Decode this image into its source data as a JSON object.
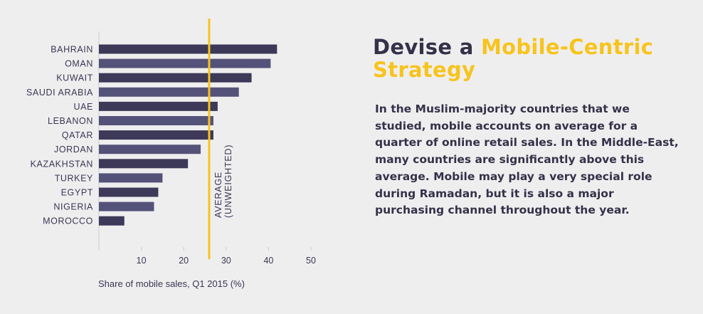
{
  "headline": {
    "part1": "Devise a ",
    "part2": "Mobile-Centric Strategy"
  },
  "body_text": "In the Muslim-majority countries that we studied, mobile accounts on average for a quarter of online retail sales. In the Middle-East, many countries are significantly above this average. Mobile may play a very special role during Ramadan, but it is also a major purchasing channel throughout the year.",
  "colors": {
    "background": "#efeeef",
    "bar": "#3d3958",
    "bar_alt": "#55527a",
    "average_line": "#f7c41d",
    "text": "#343148",
    "accent": "#f7c41d"
  },
  "chart_data": {
    "type": "bar",
    "orientation": "horizontal",
    "categories": [
      "BAHRAIN",
      "OMAN",
      "KUWAIT",
      "SAUDI ARABIA",
      "UAE",
      "LEBANON",
      "QATAR",
      "JORDAN",
      "KAZAKHSTAN",
      "TURKEY",
      "EGYPT",
      "NIGERIA",
      "MOROCCO"
    ],
    "values": [
      42,
      40.5,
      36,
      33,
      28,
      27,
      27,
      24,
      21,
      15,
      14,
      13,
      6
    ],
    "xlabel": "Share of mobile sales, Q1 2015 (%)",
    "ylabel": "",
    "xlim": [
      0,
      50
    ],
    "xticks": [
      "10",
      "20",
      "30",
      "40",
      "50"
    ],
    "average": {
      "value": 26,
      "label_line1": "AVERAGE",
      "label_line2": "(UNWEIGHTED)"
    },
    "grid": false
  }
}
